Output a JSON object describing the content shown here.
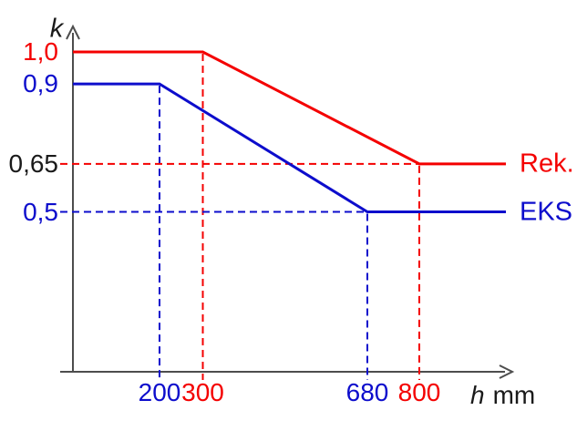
{
  "chart_data": {
    "type": "line",
    "title": "",
    "ylabel": "k",
    "xlabel_var": "h",
    "xlabel_unit": "mm",
    "xlim": [
      0,
      1060
    ],
    "ylim": [
      0,
      1.08
    ],
    "grid": false,
    "legend_position": "right-of-line-ends",
    "background": "#ffffff",
    "axis_color": "#4d4d4d",
    "series": [
      {
        "name": "Rek.",
        "color": "#f40000",
        "points": [
          [
            0,
            1.0
          ],
          [
            300,
            1.0
          ],
          [
            800,
            0.65
          ],
          [
            1000,
            0.65
          ]
        ]
      },
      {
        "name": "EKS",
        "color": "#0d0dcc",
        "points": [
          [
            0,
            0.9
          ],
          [
            200,
            0.9
          ],
          [
            680,
            0.5
          ],
          [
            1000,
            0.5
          ]
        ]
      }
    ],
    "x_ticks": [
      {
        "value": 200,
        "label": "200",
        "color": "#0d0dcc"
      },
      {
        "value": 300,
        "label": "300",
        "color": "#f40000"
      },
      {
        "value": 680,
        "label": "680",
        "color": "#0d0dcc"
      },
      {
        "value": 800,
        "label": "800",
        "color": "#f40000"
      }
    ],
    "y_ticks": [
      {
        "value": 1.0,
        "label": "1,0",
        "color": "#f40000"
      },
      {
        "value": 0.9,
        "label": "0,9",
        "color": "#0d0dcc"
      },
      {
        "value": 0.65,
        "label": "0,65",
        "color": "#1a1a1a"
      },
      {
        "value": 0.5,
        "label": "0,5",
        "color": "#0d0dcc"
      }
    ],
    "guides": {
      "vertical": [
        {
          "x": 200,
          "y_top": 0.9,
          "color": "#0d0dcc"
        },
        {
          "x": 300,
          "y_top": 1.0,
          "color": "#f40000"
        },
        {
          "x": 680,
          "y_top": 0.5,
          "color": "#0d0dcc"
        },
        {
          "x": 800,
          "y_top": 0.65,
          "color": "#f40000"
        }
      ],
      "horizontal": [
        {
          "y": 0.65,
          "x_right": 800,
          "color": "#f40000"
        },
        {
          "y": 0.5,
          "x_right": 680,
          "color": "#0d0dcc"
        }
      ]
    }
  }
}
